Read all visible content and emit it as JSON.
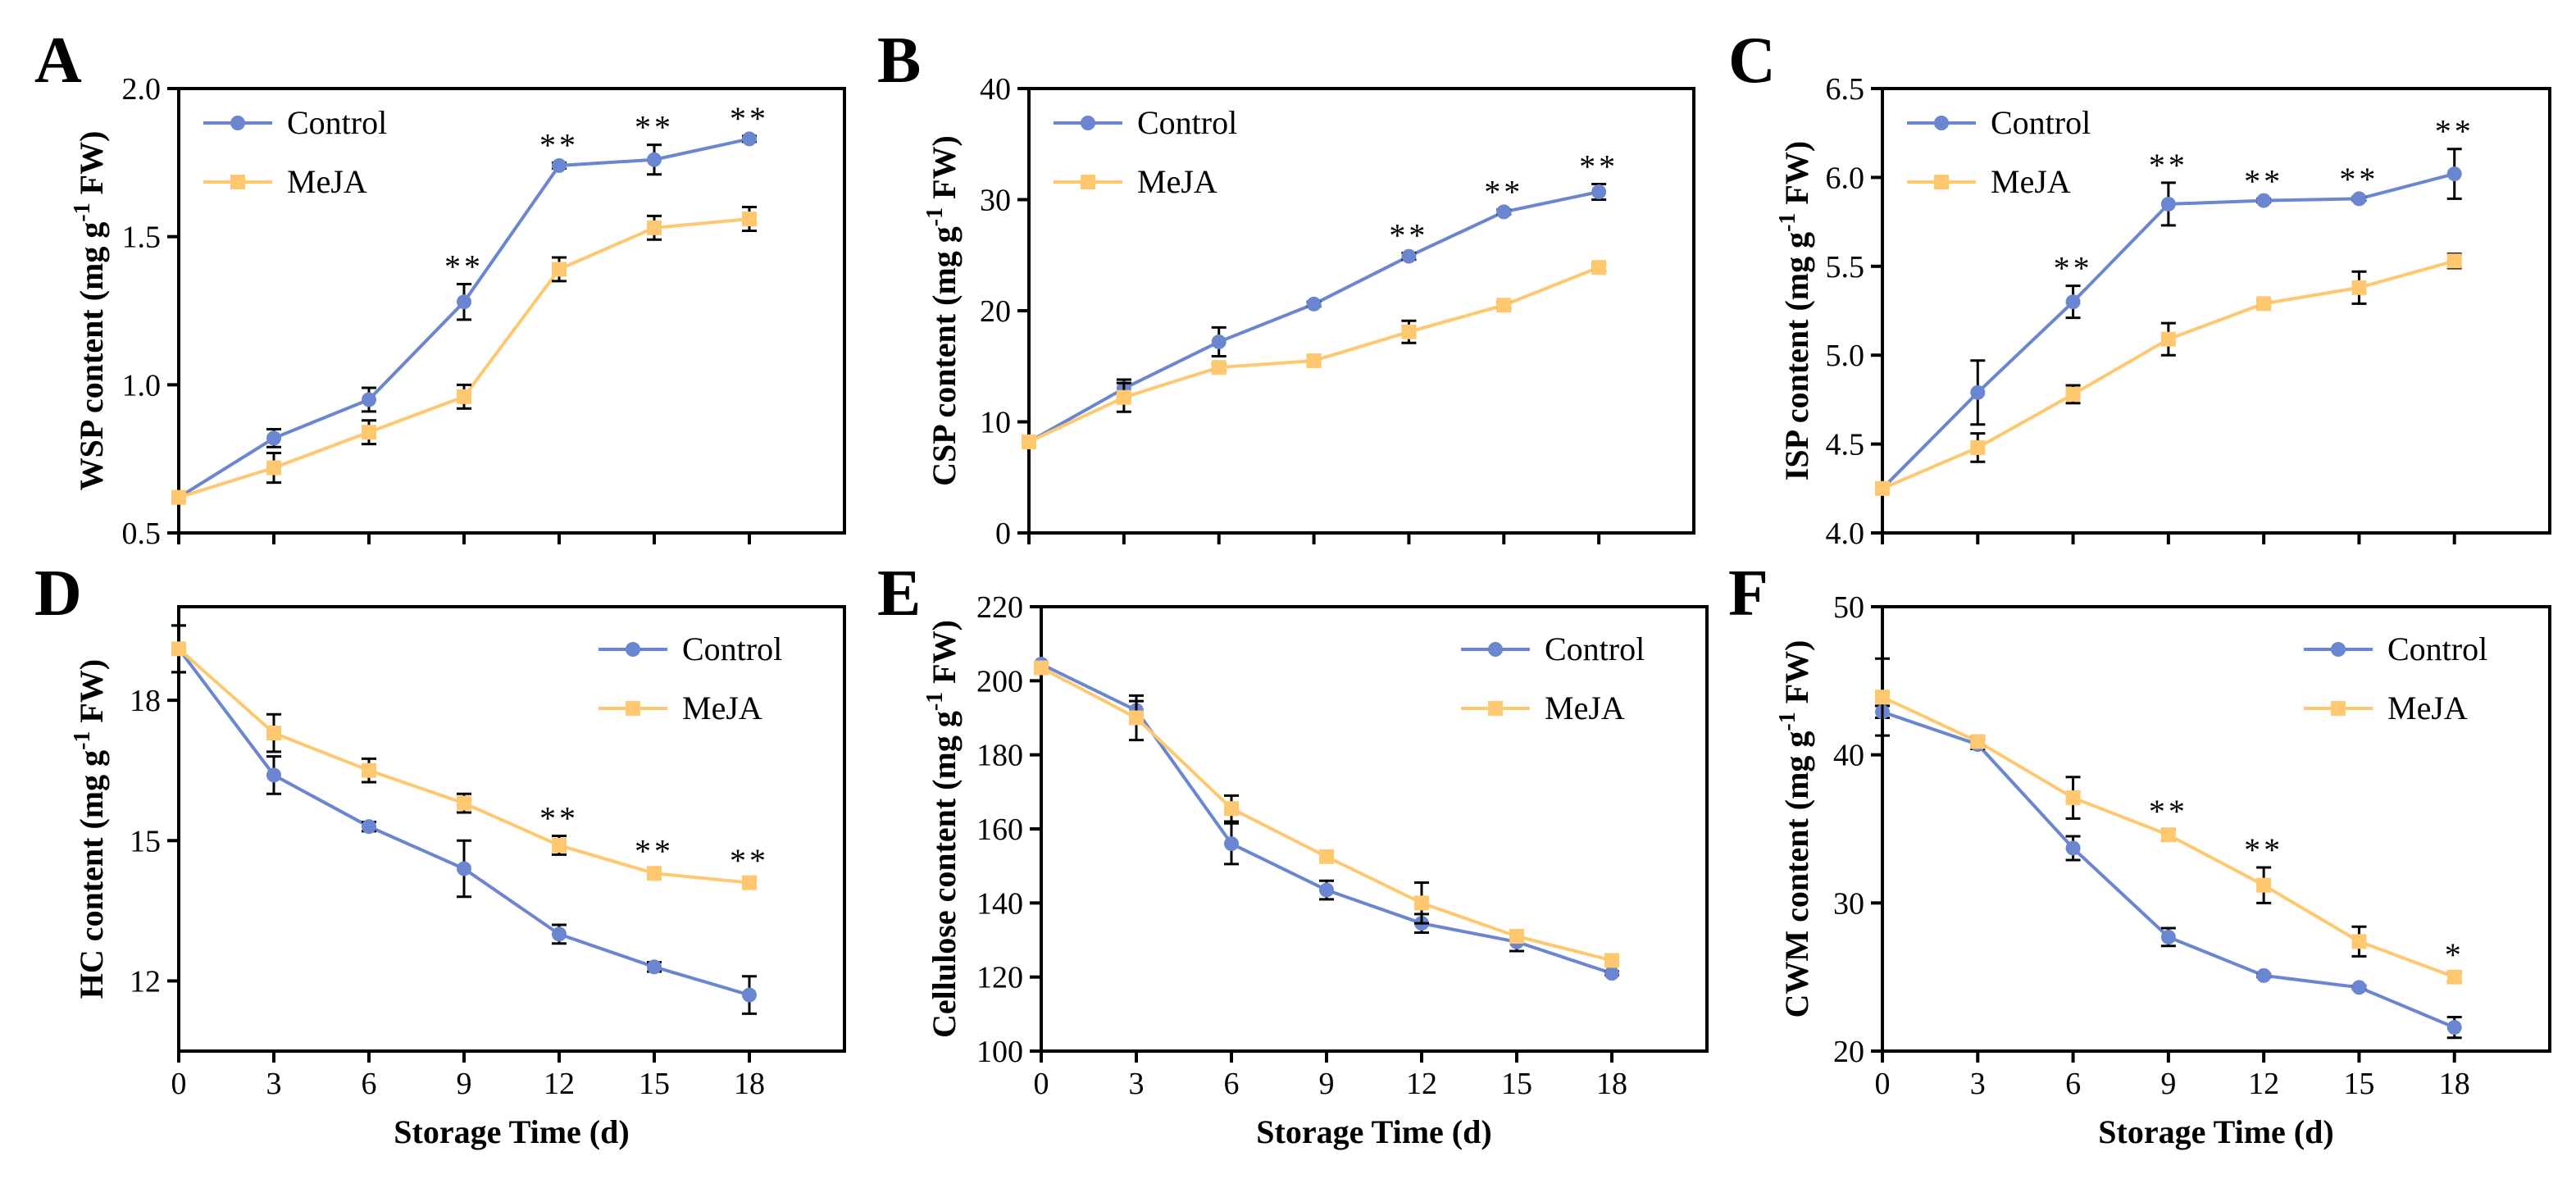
{
  "colors": {
    "control": "#6b86d1",
    "meja": "#ffc86e",
    "axis": "#000000"
  },
  "chart_data": [
    {
      "type": "line",
      "panel_label": "A",
      "ylabel": "WSP content (mg g",
      "ylabel_sup": "-1",
      "ylabel_tail": " FW)",
      "xlabel": "",
      "ylim": [
        0.5,
        2.0
      ],
      "yticks": [
        0.5,
        1.0,
        1.5,
        2.0
      ],
      "ytick_labels": [
        "0.5",
        "1.0",
        "1.5",
        "2.0"
      ],
      "xlim": [
        0,
        21
      ],
      "xticks": [
        0,
        3,
        6,
        9,
        12,
        15,
        18
      ],
      "xtick_labels": [],
      "legend": {
        "position": "top-left",
        "entries": [
          "Control",
          "MeJA"
        ]
      },
      "x": [
        0,
        3,
        6,
        9,
        12,
        15,
        18
      ],
      "series": [
        {
          "name": "Control",
          "values": [
            0.62,
            0.82,
            0.95,
            1.28,
            1.74,
            1.76,
            1.83
          ],
          "errors": [
            0.01,
            0.03,
            0.04,
            0.06,
            0.01,
            0.05,
            0.01
          ]
        },
        {
          "name": "MeJA",
          "values": [
            0.62,
            0.72,
            0.84,
            0.96,
            1.39,
            1.53,
            1.56
          ],
          "errors": [
            0.01,
            0.05,
            0.04,
            0.04,
            0.04,
            0.04,
            0.04
          ]
        }
      ],
      "significance": [
        {
          "x": 9,
          "label": "**"
        },
        {
          "x": 12,
          "label": "**"
        },
        {
          "x": 15,
          "label": "**"
        },
        {
          "x": 18,
          "label": "**"
        }
      ]
    },
    {
      "type": "line",
      "panel_label": "B",
      "ylabel": "CSP content (mg g",
      "ylabel_sup": "-1",
      "ylabel_tail": " FW)",
      "xlabel": "",
      "ylim": [
        0,
        40
      ],
      "yticks": [
        0,
        10,
        20,
        30,
        40
      ],
      "ytick_labels": [
        "0",
        "10",
        "20",
        "30",
        "40"
      ],
      "xlim": [
        0,
        21
      ],
      "xticks": [
        0,
        3,
        6,
        9,
        12,
        15,
        18
      ],
      "xtick_labels": [],
      "legend": {
        "position": "top-left",
        "entries": [
          "Control",
          "MeJA"
        ]
      },
      "x": [
        0,
        3,
        6,
        9,
        12,
        15,
        18
      ],
      "series": [
        {
          "name": "Control",
          "values": [
            8.2,
            13.0,
            17.2,
            20.6,
            24.9,
            28.9,
            30.7
          ],
          "errors": [
            0.3,
            0.8,
            1.3,
            0.2,
            0.3,
            0.2,
            0.7
          ]
        },
        {
          "name": "MeJA",
          "values": [
            8.2,
            12.2,
            14.9,
            15.5,
            18.1,
            20.5,
            23.9
          ],
          "errors": [
            0.3,
            1.3,
            0.3,
            0.3,
            1.0,
            0.3,
            0.3
          ]
        }
      ],
      "significance": [
        {
          "x": 12,
          "label": "**"
        },
        {
          "x": 15,
          "label": "**"
        },
        {
          "x": 18,
          "label": "**"
        }
      ]
    },
    {
      "type": "line",
      "panel_label": "C",
      "ylabel": "ISP content (mg g",
      "ylabel_sup": "-1",
      "ylabel_tail": " FW)",
      "xlabel": "",
      "ylim": [
        4.0,
        6.5
      ],
      "yticks": [
        4.0,
        4.5,
        5.0,
        5.5,
        6.0,
        6.5
      ],
      "ytick_labels": [
        "4.0",
        "4.5",
        "5.0",
        "5.5",
        "6.0",
        "6.5"
      ],
      "xlim": [
        0,
        21
      ],
      "xticks": [
        0,
        3,
        6,
        9,
        12,
        15,
        18
      ],
      "xtick_labels": [],
      "legend": {
        "position": "top-left",
        "entries": [
          "Control",
          "MeJA"
        ]
      },
      "x": [
        0,
        3,
        6,
        9,
        12,
        15,
        18
      ],
      "series": [
        {
          "name": "Control",
          "values": [
            4.25,
            4.79,
            5.3,
            5.85,
            5.87,
            5.88,
            6.02
          ],
          "errors": [
            0.02,
            0.18,
            0.09,
            0.12,
            0.01,
            0.01,
            0.14
          ]
        },
        {
          "name": "MeJA",
          "values": [
            4.25,
            4.48,
            4.78,
            5.09,
            5.29,
            5.38,
            5.53
          ],
          "errors": [
            0.02,
            0.08,
            0.05,
            0.09,
            0.02,
            0.09,
            0.04
          ]
        }
      ],
      "significance": [
        {
          "x": 6,
          "label": "**"
        },
        {
          "x": 9,
          "label": "**"
        },
        {
          "x": 12,
          "label": "**"
        },
        {
          "x": 15,
          "label": "**"
        },
        {
          "x": 18,
          "label": "**"
        }
      ]
    },
    {
      "type": "line",
      "panel_label": "D",
      "ylabel": "HC content (mg g",
      "ylabel_sup": "-1",
      "ylabel_tail": " FW)",
      "xlabel": "Storage Time (d)",
      "ylim": [
        10.5,
        20.0
      ],
      "yticks": [
        12,
        15,
        18
      ],
      "ytick_labels": [
        "12",
        "15",
        "18"
      ],
      "xlim": [
        0,
        21
      ],
      "xticks": [
        0,
        3,
        6,
        9,
        12,
        15,
        18
      ],
      "xtick_labels": [
        "0",
        "3",
        "6",
        "9",
        "12",
        "15",
        "18"
      ],
      "legend": {
        "position": "top-right",
        "entries": [
          "Control",
          "MeJA"
        ]
      },
      "x": [
        0,
        3,
        6,
        9,
        12,
        15,
        18
      ],
      "series": [
        {
          "name": "Control",
          "values": [
            19.1,
            16.4,
            15.3,
            14.4,
            13.0,
            12.3,
            11.7
          ],
          "errors": [
            0.5,
            0.4,
            0.1,
            0.6,
            0.2,
            0.1,
            0.4
          ]
        },
        {
          "name": "MeJA",
          "values": [
            19.1,
            17.3,
            16.5,
            15.8,
            14.9,
            14.3,
            14.1
          ],
          "errors": [
            0.5,
            0.4,
            0.25,
            0.2,
            0.2,
            0.1,
            0.1
          ]
        }
      ],
      "significance": [
        {
          "x": 12,
          "label": "**"
        },
        {
          "x": 15,
          "label": "**"
        },
        {
          "x": 18,
          "label": "**"
        }
      ]
    },
    {
      "type": "line",
      "panel_label": "E",
      "ylabel": "Cellulose content (mg g",
      "ylabel_sup": "-1",
      "ylabel_tail": " FW)",
      "xlabel": "Storage Time (d)",
      "ylim": [
        100,
        220
      ],
      "yticks": [
        100,
        120,
        140,
        160,
        180,
        200,
        220
      ],
      "ytick_labels": [
        "100",
        "120",
        "140",
        "160",
        "180",
        "200",
        "220"
      ],
      "xlim": [
        0,
        21
      ],
      "xticks": [
        0,
        3,
        6,
        9,
        12,
        15,
        18
      ],
      "xtick_labels": [
        "0",
        "3",
        "6",
        "9",
        "12",
        "15",
        "18"
      ],
      "legend": {
        "position": "top-right",
        "entries": [
          "Control",
          "MeJA"
        ]
      },
      "x": [
        0,
        3,
        6,
        9,
        12,
        15,
        18
      ],
      "series": [
        {
          "name": "Control",
          "values": [
            204.5,
            192.0,
            156.0,
            143.5,
            134.5,
            129.5,
            121.0
          ],
          "errors": [
            0.5,
            2.5,
            5.5,
            2.5,
            2.5,
            2.5,
            0.5
          ]
        },
        {
          "name": "MeJA",
          "values": [
            203.5,
            190.0,
            165.5,
            152.5,
            140.0,
            131.0,
            124.5
          ],
          "errors": [
            0.5,
            6.0,
            3.5,
            0.5,
            5.5,
            1.0,
            0.5
          ]
        }
      ],
      "significance": []
    },
    {
      "type": "line",
      "panel_label": "F",
      "ylabel": "CWM content (mg g",
      "ylabel_sup": "-1",
      "ylabel_tail": " FW)",
      "xlabel": "Storage Time (d)",
      "ylim": [
        20,
        50
      ],
      "yticks": [
        20,
        30,
        40,
        50
      ],
      "ytick_labels": [
        "20",
        "30",
        "40",
        "50"
      ],
      "xlim": [
        0,
        21
      ],
      "xticks": [
        0,
        3,
        6,
        9,
        12,
        15,
        18
      ],
      "xtick_labels": [
        "0",
        "3",
        "6",
        "9",
        "12",
        "15",
        "18"
      ],
      "legend": {
        "position": "top-right",
        "entries": [
          "Control",
          "MeJA"
        ]
      },
      "x": [
        0,
        3,
        6,
        9,
        12,
        15,
        18
      ],
      "series": [
        {
          "name": "Control",
          "values": [
            42.9,
            40.7,
            33.7,
            27.7,
            25.1,
            24.3,
            21.6
          ],
          "errors": [
            0.4,
            0.3,
            0.8,
            0.6,
            0.1,
            0.1,
            0.7
          ]
        },
        {
          "name": "MeJA",
          "values": [
            43.9,
            40.9,
            37.1,
            34.6,
            31.2,
            27.4,
            25.0
          ],
          "errors": [
            2.6,
            0.3,
            1.4,
            0.4,
            1.2,
            1.0,
            0.3
          ]
        }
      ],
      "significance": [
        {
          "x": 9,
          "label": "**"
        },
        {
          "x": 12,
          "label": "**"
        },
        {
          "x": 18,
          "label": "*"
        }
      ]
    }
  ]
}
